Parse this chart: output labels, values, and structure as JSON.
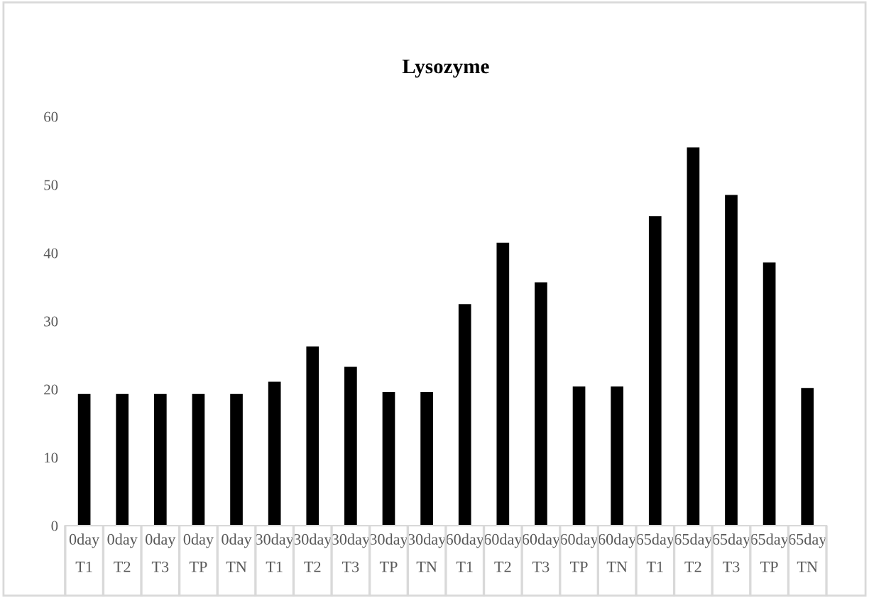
{
  "chart_data": {
    "type": "bar",
    "title": "Lysozyme",
    "categories": [
      "0day\nT1",
      "0day\nT2",
      "0day\nT3",
      "0day\nTP",
      "0day\nTN",
      "30day\nT1",
      "30day\nT2",
      "30day\nT3",
      "30day\nTP",
      "30day\nTN",
      "60day\nT1",
      "60day\nT2",
      "60day\nT3",
      "60day\nTP",
      "60day\nTN",
      "65day\nT1",
      "65day\nT2",
      "65day\nT3",
      "65day\nTP",
      "65day\nTN"
    ],
    "values": [
      19.3,
      19.3,
      19.3,
      19.3,
      19.3,
      21.1,
      26.3,
      23.3,
      19.6,
      19.6,
      32.5,
      41.5,
      35.7,
      20.4,
      20.4,
      45.4,
      55.5,
      48.5,
      38.6,
      20.2
    ],
    "color": "#000000",
    "ylim": [
      0,
      60
    ],
    "yticks": [
      0,
      10,
      20,
      30,
      40,
      50,
      60
    ],
    "grid": false,
    "legend": false
  }
}
